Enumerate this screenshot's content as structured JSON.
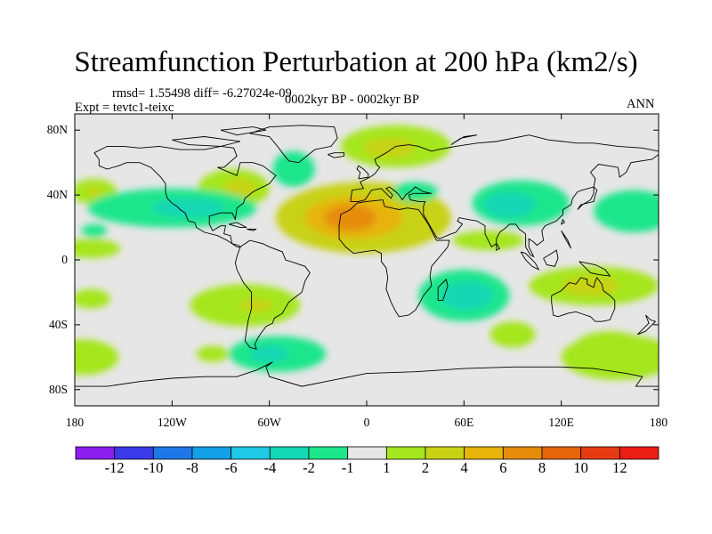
{
  "title": "Streamfunction Perturbation at 200 hPa (km2/s)",
  "stats_label": "rmsd= 1.55498 diff= -6.27024e-09",
  "experiment_label": "Expt = tevtc1-teixc",
  "period_label": "0002kyr BP - 0002kyr BP",
  "season_label": "ANN",
  "lat_ticks": [
    {
      "label": "80N",
      "lat": 80
    },
    {
      "label": "40N",
      "lat": 40
    },
    {
      "label": "0",
      "lat": 0
    },
    {
      "label": "40S",
      "lat": -40
    },
    {
      "label": "80S",
      "lat": -80
    }
  ],
  "lon_ticks": [
    {
      "label": "180",
      "lon": -180
    },
    {
      "label": "120W",
      "lon": -120
    },
    {
      "label": "60W",
      "lon": -60
    },
    {
      "label": "0",
      "lon": 0
    },
    {
      "label": "60E",
      "lon": 60
    },
    {
      "label": "120E",
      "lon": 120
    },
    {
      "label": "180",
      "lon": 180
    }
  ],
  "colorbar": {
    "labels": [
      "-12",
      "-10",
      "-8",
      "-6",
      "-4",
      "-2",
      "-1",
      "1",
      "2",
      "4",
      "6",
      "8",
      "10",
      "12"
    ],
    "colors": [
      "#8c1ff0",
      "#3a3ae8",
      "#1e78e8",
      "#14a0e6",
      "#1ec8e6",
      "#14d7b4",
      "#1ee68c",
      "#e6e6e6",
      "#a5e61e",
      "#c8d214",
      "#e6b40a",
      "#e68c0a",
      "#e6640a",
      "#e63c14",
      "#eb1e14"
    ]
  },
  "colors": {
    "map_background": "#e6e6e6",
    "coastline": "#000000"
  }
}
